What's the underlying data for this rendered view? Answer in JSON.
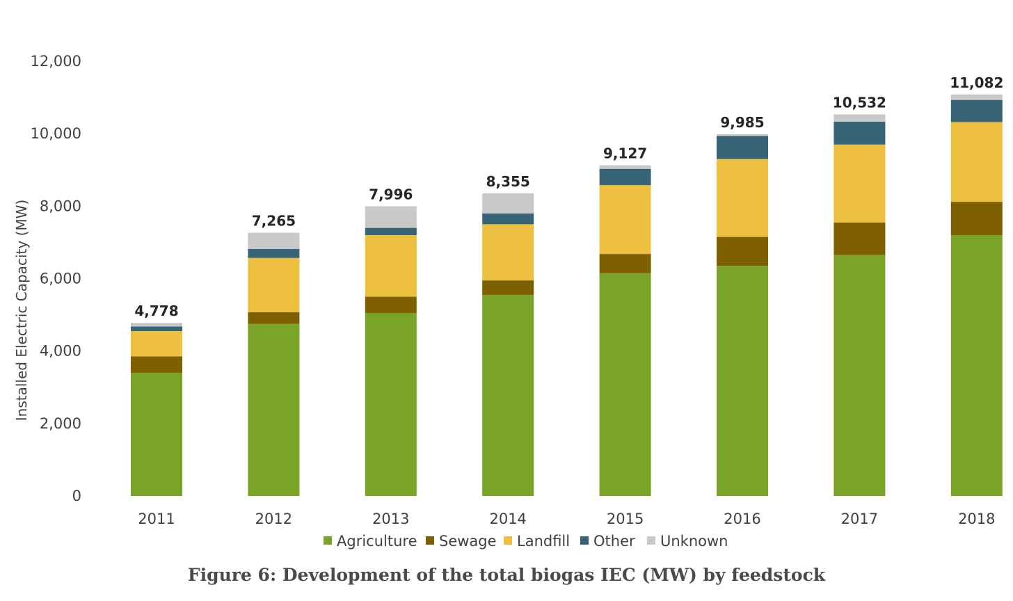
{
  "caption": "Figure 6: Development of the total biogas IEC (MW) by feedstock",
  "chart_data": {
    "type": "bar",
    "stacked": true,
    "ylabel": "Installed Electric Capacity (MW)",
    "xlabel": "",
    "ylim": [
      0,
      12000
    ],
    "yticks": [
      0,
      2000,
      4000,
      6000,
      8000,
      10000,
      12000
    ],
    "ytick_labels": [
      "0",
      "2,000",
      "4,000",
      "6,000",
      "8,000",
      "10,000",
      "12,000"
    ],
    "grid": false,
    "legend_position": "bottom",
    "categories": [
      "2011",
      "2012",
      "2013",
      "2014",
      "2015",
      "2016",
      "2017",
      "2018"
    ],
    "series": [
      {
        "name": "Agriculture",
        "color": "#7aa428",
        "values": [
          3400,
          4750,
          5050,
          5550,
          6150,
          6350,
          6650,
          7200
        ]
      },
      {
        "name": "Sewage",
        "color": "#7f6000",
        "values": [
          450,
          320,
          450,
          400,
          530,
          800,
          900,
          920
        ]
      },
      {
        "name": "Landfill",
        "color": "#eec03f",
        "values": [
          700,
          1500,
          1700,
          1550,
          1900,
          2150,
          2150,
          2200
        ]
      },
      {
        "name": "Other",
        "color": "#376577",
        "values": [
          128,
          250,
          200,
          300,
          450,
          635,
          632,
          612
        ]
      },
      {
        "name": "Unknown",
        "color": "#c9c9c9",
        "values": [
          100,
          445,
          596,
          555,
          97,
          50,
          200,
          150
        ]
      }
    ],
    "totals": [
      4778,
      7265,
      7996,
      8355,
      9127,
      9985,
      10532,
      11082
    ],
    "total_labels": [
      "4,778",
      "7,265",
      "7,996",
      "8,355",
      "9,127",
      "9,985",
      "10,532",
      "11,082"
    ]
  }
}
